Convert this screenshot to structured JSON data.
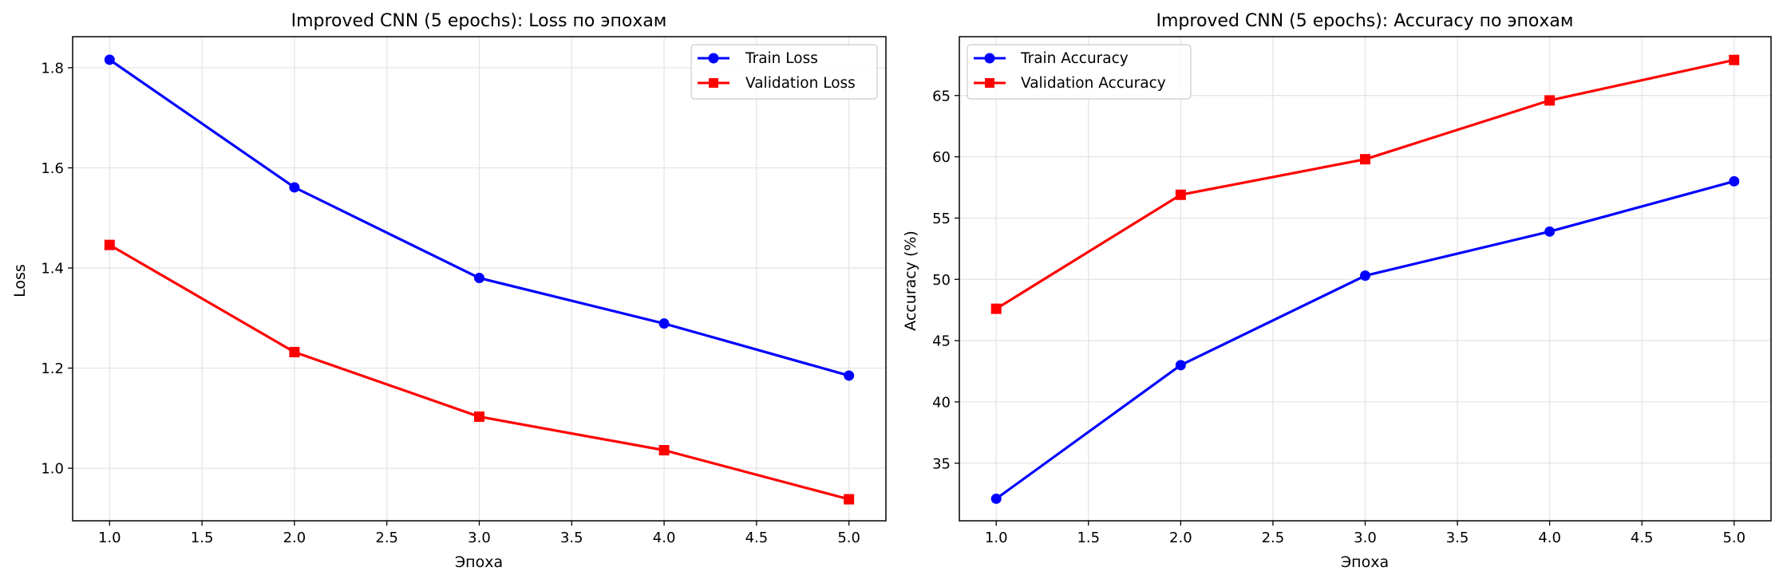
{
  "figure": {
    "background": "#ffffff",
    "grid_color": "#e3e3e3"
  },
  "chart_data": [
    {
      "type": "line",
      "title": "Improved CNN (5 epochs): Loss по эпохам",
      "xlabel": "Эпоха",
      "ylabel": "Loss",
      "x": [
        1,
        2,
        3,
        4,
        5
      ],
      "xlim": [
        0.8,
        5.2
      ],
      "ylim": [
        0.895,
        1.862
      ],
      "xticks": [
        1.0,
        1.5,
        2.0,
        2.5,
        3.0,
        3.5,
        4.0,
        4.5,
        5.0
      ],
      "yticks": [
        1.0,
        1.2,
        1.4,
        1.6,
        1.8
      ],
      "tick_decimals": 1,
      "grid": true,
      "legend": "top-right",
      "series": [
        {
          "name": "Train Loss",
          "values": [
            1.816,
            1.561,
            1.38,
            1.289,
            1.185
          ],
          "color": "#0000ff",
          "marker": "circle"
        },
        {
          "name": "Validation Loss",
          "values": [
            1.446,
            1.232,
            1.103,
            1.036,
            0.938
          ],
          "color": "#ff0000",
          "marker": "square"
        }
      ]
    },
    {
      "type": "line",
      "title": "Improved CNN (5 epochs): Accuracy по эпохам",
      "xlabel": "Эпоха",
      "ylabel": "Accuracy (%)",
      "x": [
        1,
        2,
        3,
        4,
        5
      ],
      "xlim": [
        0.8,
        5.2
      ],
      "ylim": [
        30.3,
        69.8
      ],
      "xticks": [
        1.0,
        1.5,
        2.0,
        2.5,
        3.0,
        3.5,
        4.0,
        4.5,
        5.0
      ],
      "yticks": [
        35,
        40,
        45,
        50,
        55,
        60,
        65
      ],
      "tick_decimals": 0,
      "grid": true,
      "legend": "top-left",
      "series": [
        {
          "name": "Train Accuracy",
          "values": [
            32.1,
            43.0,
            50.3,
            53.9,
            58.0
          ],
          "color": "#0000ff",
          "marker": "circle"
        },
        {
          "name": "Validation Accuracy",
          "values": [
            47.6,
            56.9,
            59.8,
            64.6,
            67.9
          ],
          "color": "#ff0000",
          "marker": "square"
        }
      ]
    }
  ]
}
